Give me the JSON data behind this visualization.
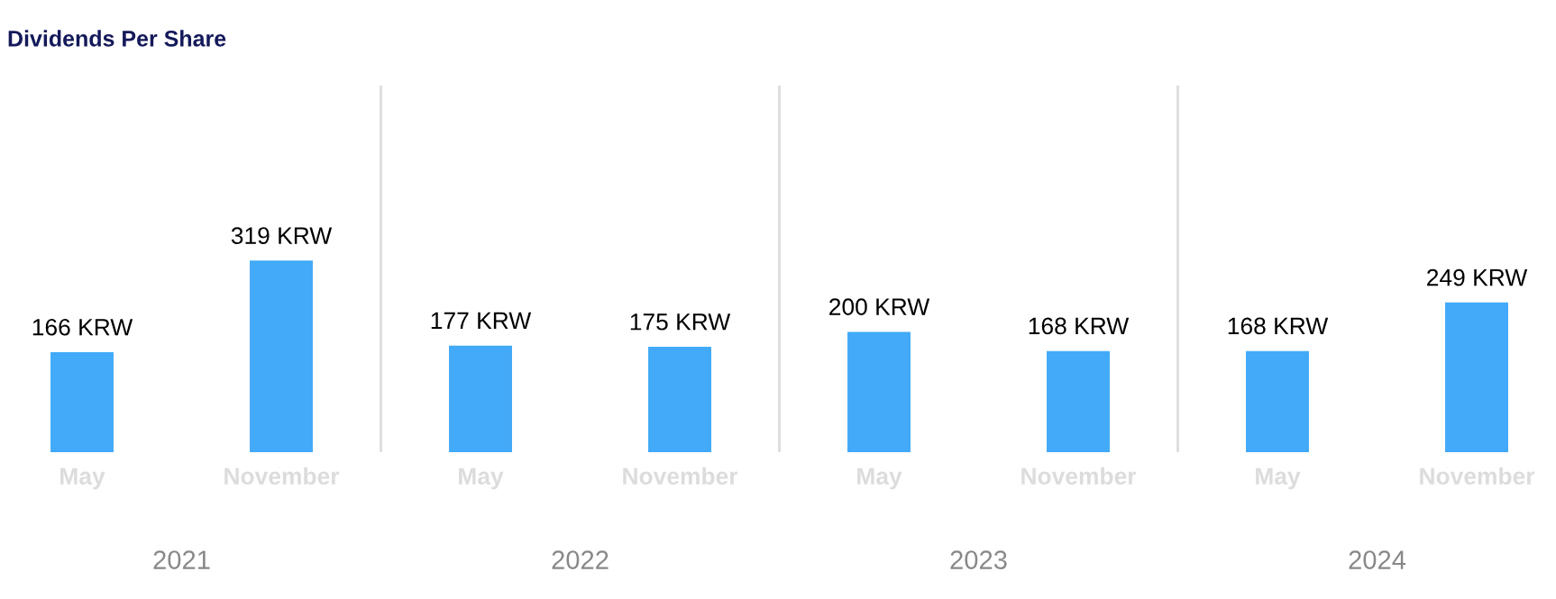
{
  "chart_data": {
    "type": "bar",
    "title": "Dividends Per Share",
    "categories": [
      "May",
      "November",
      "May",
      "November",
      "May",
      "November",
      "May",
      "November"
    ],
    "values": [
      166,
      319,
      177,
      175,
      200,
      168,
      168,
      249
    ],
    "value_labels": [
      "166 KRW",
      "319 KRW",
      "177 KRW",
      "175 KRW",
      "200 KRW",
      "168 KRW",
      "168 KRW",
      "249 KRW"
    ],
    "color": "#42aaf8",
    "annotations": [
      "2021",
      "2022",
      "2023",
      "2024"
    ],
    "grid": false,
    "legend": false
  }
}
